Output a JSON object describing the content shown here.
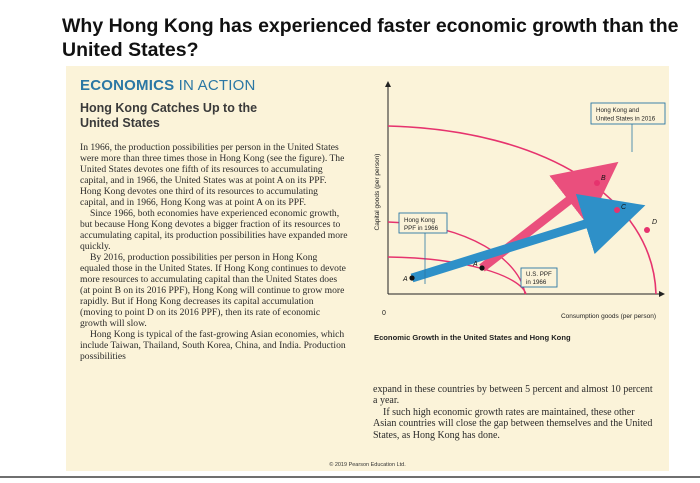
{
  "question_title": "Why Hong Kong has experienced faster economic growth than the United States?",
  "box_label_part1": "ECONOMICS",
  "box_label_part2": " IN ACTION",
  "subtitle": "Hong Kong Catches Up to the United States",
  "left_paragraphs": [
    "In 1966, the production possibilities per person in the United States were more than three times those in Hong Kong (see the figure). The United States devotes one fifth of its resources to accumulating capital, and in 1966, the United States was at point A on its PPF. Hong Kong devotes one third of its resources to accumulating capital, and in 1966, Hong Kong was at point A on its PPF.",
    "Since 1966, both economies have experienced economic growth, but because Hong Kong devotes a bigger fraction of its resources to accumulating capital, its production possibilities have expanded more quickly.",
    "By 2016, production possibilities per person in Hong Kong equaled those in the United States. If Hong Kong continues to devote more resources to accumulating capital than the United States does (at point B on its 2016 PPF), Hong Kong will continue to grow more rapidly. But if Hong Kong decreases its capital accumulation (moving to point D on its 2016 PPF), then its rate of economic growth will slow.",
    "Hong Kong is typical of the fast-growing Asian economies, which include Taiwan, Thailand, South Korea, China, and India. Production possibilities"
  ],
  "right_paragraphs": [
    "expand in these countries by between 5 percent and almost 10 percent a year.",
    "If such high economic growth rates are maintained, these other Asian countries will close the gap between themselves and the United States, as Hong Kong has done."
  ],
  "figure": {
    "y_axis_label": "Capital goods (per person)",
    "x_axis_label": "Consumption goods (per person)",
    "origin_label": "0",
    "caption": "Economic Growth in the United States and Hong Kong",
    "labels": {
      "hk_us_2016": [
        "Hong Kong and",
        "United States in 2016"
      ],
      "hk_1966": [
        "Hong Kong",
        "PPF in 1966"
      ],
      "us_1966": [
        "U.S. PPF",
        "in 1966"
      ]
    },
    "points": [
      "A",
      "A",
      "B",
      "D",
      "C"
    ],
    "colors": {
      "curve": "#e6336e",
      "hk_arrow": "#ea4f7d",
      "us_arrow": "#2e90c8",
      "axis": "#222222",
      "callout_border": "#2b77a4"
    }
  },
  "copyright": "© 2019 Pearson Education Ltd."
}
